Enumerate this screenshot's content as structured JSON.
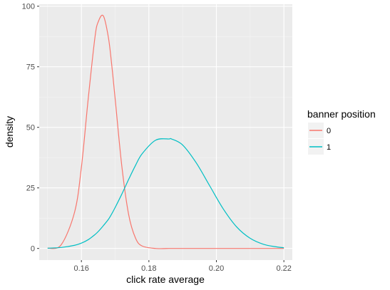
{
  "chart_data": {
    "type": "line",
    "xlabel": "click rate average",
    "ylabel": "density",
    "xlim": [
      0.1475,
      0.2225
    ],
    "ylim": [
      -4.8,
      100.8
    ],
    "x_ticks": [
      0.16,
      0.18,
      0.2,
      0.22
    ],
    "x_tick_labels": [
      "0.16",
      "0.18",
      "0.20",
      "0.22"
    ],
    "y_ticks": [
      0,
      25,
      50,
      75,
      100
    ],
    "y_tick_labels": [
      "0",
      "25",
      "50",
      "75",
      "100"
    ],
    "grid": true,
    "legend": {
      "title": "banner position",
      "placement": "right"
    },
    "x": [
      0.15,
      0.154,
      0.158,
      0.16,
      0.162,
      0.164,
      0.165,
      0.1665,
      0.168,
      0.169,
      0.17,
      0.172,
      0.174,
      0.176,
      0.178,
      0.182,
      0.186,
      0.1867,
      0.19,
      0.194,
      0.198,
      0.202,
      0.206,
      0.21,
      0.214,
      0.218,
      0.22
    ],
    "series": [
      {
        "name": "0",
        "color": "#F8766D",
        "values": [
          0.1,
          1.5,
          15.1,
          33.5,
          61.5,
          87.0,
          93.6,
          96.0,
          87.1,
          75.6,
          61.8,
          33.7,
          14.0,
          4.4,
          1.0,
          0.0,
          0.0,
          0.0,
          0.0,
          0.0,
          0.0,
          0.0,
          0.0,
          0.0,
          0.0,
          0.0,
          0.0
        ]
      },
      {
        "name": "1",
        "color": "#00BFC4",
        "values": [
          0.1,
          0.4,
          1.3,
          2.2,
          3.6,
          5.7,
          7.0,
          9.4,
          12.0,
          14.3,
          16.9,
          22.5,
          28.5,
          34.2,
          39.1,
          44.7,
          45.2,
          45.2,
          42.7,
          35.4,
          25.9,
          16.4,
          8.9,
          4.2,
          1.7,
          0.6,
          0.3
        ]
      }
    ]
  }
}
